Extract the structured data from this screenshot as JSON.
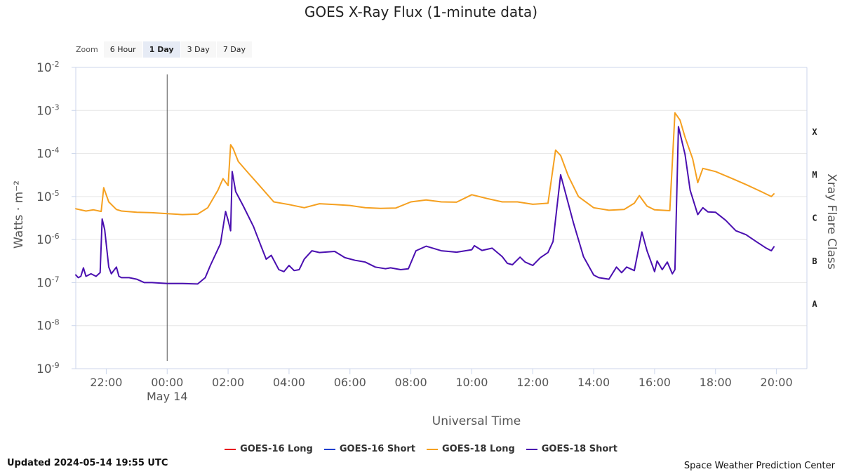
{
  "chart_data": {
    "type": "line",
    "title": "GOES X-Ray Flux (1-minute data)",
    "xlabel": "Universal Time",
    "ylabel": "Watts · m⁻²",
    "y2label": "Xray Flare Class",
    "yscale": "log",
    "ylim": [
      1e-09,
      0.01
    ],
    "ytick_exponents": [
      "-2",
      "-3",
      "-4",
      "-5",
      "-6",
      "-7",
      "-8",
      "-9"
    ],
    "xlim": [
      "2024-05-13T21:00",
      "2024-05-14T21:00"
    ],
    "xtick_labels": [
      "22:00",
      "00:00",
      "02:00",
      "04:00",
      "06:00",
      "08:00",
      "10:00",
      "12:00",
      "14:00",
      "16:00",
      "18:00",
      "20:00"
    ],
    "xtick_times": [
      "2024-05-13T22:00",
      "2024-05-14T00:00",
      "2024-05-14T02:00",
      "2024-05-14T04:00",
      "2024-05-14T06:00",
      "2024-05-14T08:00",
      "2024-05-14T10:00",
      "2024-05-14T12:00",
      "2024-05-14T14:00",
      "2024-05-14T16:00",
      "2024-05-14T18:00",
      "2024-05-14T20:00"
    ],
    "date_label": "May 14",
    "date_marker": "2024-05-14T00:00",
    "flare_classes": [
      {
        "label": "X",
        "value": 0.000316
      },
      {
        "label": "M",
        "value": 3.16e-05
      },
      {
        "label": "C",
        "value": 3.16e-06
      },
      {
        "label": "B",
        "value": 3.16e-07
      },
      {
        "label": "A",
        "value": 3.16e-08
      }
    ],
    "grid": true,
    "legend_position": "bottom",
    "series": [
      {
        "name": "GOES-16 Long",
        "color": "#e8191f",
        "x": [],
        "y": []
      },
      {
        "name": "GOES-16 Short",
        "color": "#1f3fcf",
        "x": [],
        "y": []
      },
      {
        "name": "GOES-18 Long",
        "color": "#f5a020",
        "x": [
          "2024-05-13T20:58",
          "2024-05-13T21:20",
          "2024-05-13T21:35",
          "2024-05-13T21:50",
          "2024-05-13T21:55",
          "2024-05-13T22:05",
          "2024-05-13T22:20",
          "2024-05-13T22:30",
          "2024-05-13T23:00",
          "2024-05-13T23:30",
          "2024-05-14T00:00",
          "2024-05-14T00:30",
          "2024-05-14T01:00",
          "2024-05-14T01:20",
          "2024-05-14T01:40",
          "2024-05-14T01:50",
          "2024-05-14T02:00",
          "2024-05-14T02:05",
          "2024-05-14T02:10",
          "2024-05-14T02:20",
          "2024-05-14T02:40",
          "2024-05-14T03:00",
          "2024-05-14T03:30",
          "2024-05-14T04:00",
          "2024-05-14T04:30",
          "2024-05-14T05:00",
          "2024-05-14T05:30",
          "2024-05-14T06:00",
          "2024-05-14T06:30",
          "2024-05-14T07:00",
          "2024-05-14T07:30",
          "2024-05-14T08:00",
          "2024-05-14T08:30",
          "2024-05-14T09:00",
          "2024-05-14T09:30",
          "2024-05-14T10:00",
          "2024-05-14T10:30",
          "2024-05-14T11:00",
          "2024-05-14T11:30",
          "2024-05-14T12:00",
          "2024-05-14T12:30",
          "2024-05-14T12:45",
          "2024-05-14T12:55",
          "2024-05-14T13:10",
          "2024-05-14T13:30",
          "2024-05-14T14:00",
          "2024-05-14T14:30",
          "2024-05-14T15:00",
          "2024-05-14T15:20",
          "2024-05-14T15:30",
          "2024-05-14T15:45",
          "2024-05-14T16:00",
          "2024-05-14T16:30",
          "2024-05-14T16:40",
          "2024-05-14T16:50",
          "2024-05-14T17:00",
          "2024-05-14T17:15",
          "2024-05-14T17:25",
          "2024-05-14T17:35",
          "2024-05-14T18:00",
          "2024-05-14T18:30",
          "2024-05-14T19:00",
          "2024-05-14T19:30",
          "2024-05-14T19:50",
          "2024-05-14T19:55"
        ],
        "y": [
          5.2e-06,
          4.6e-06,
          4.9e-06,
          4.5e-06,
          1.6e-05,
          7.5e-06,
          5e-06,
          4.6e-06,
          4.3e-06,
          4.2e-06,
          4e-06,
          3.8e-06,
          3.9e-06,
          5.5e-06,
          1.4e-05,
          2.6e-05,
          1.8e-05,
          0.00016,
          0.00013,
          6.5e-05,
          3.5e-05,
          1.9e-05,
          7.5e-06,
          6.5e-06,
          5.5e-06,
          6.8e-06,
          6.5e-06,
          6.2e-06,
          5.5e-06,
          5.3e-06,
          5.4e-06,
          7.5e-06,
          8.3e-06,
          7.5e-06,
          7.4e-06,
          1.1e-05,
          9e-06,
          7.5e-06,
          7.5e-06,
          6.6e-06,
          7e-06,
          0.00012,
          9e-05,
          3e-05,
          1e-05,
          5.5e-06,
          4.8e-06,
          5e-06,
          7e-06,
          1.05e-05,
          6e-06,
          4.9e-06,
          4.7e-06,
          0.00088,
          0.0006,
          0.00024,
          7.5e-05,
          2.1e-05,
          4.5e-05,
          3.8e-05,
          2.7e-05,
          1.9e-05,
          1.3e-05,
          1e-05,
          1.15e-05
        ]
      },
      {
        "name": "GOES-18 Short",
        "color": "#4a0fb0",
        "x": [
          "2024-05-13T20:58",
          "2024-05-13T21:05",
          "2024-05-13T21:10",
          "2024-05-13T21:15",
          "2024-05-13T21:20",
          "2024-05-13T21:30",
          "2024-05-13T21:40",
          "2024-05-13T21:48",
          "2024-05-13T21:52",
          "2024-05-13T21:57",
          "2024-05-13T22:05",
          "2024-05-13T22:10",
          "2024-05-13T22:20",
          "2024-05-13T22:25",
          "2024-05-13T22:30",
          "2024-05-13T22:45",
          "2024-05-13T23:00",
          "2024-05-13T23:15",
          "2024-05-13T23:30",
          "2024-05-14T00:00",
          "2024-05-14T00:30",
          "2024-05-14T01:00",
          "2024-05-14T01:15",
          "2024-05-14T01:25",
          "2024-05-14T01:45",
          "2024-05-14T01:55",
          "2024-05-14T02:00",
          "2024-05-14T02:05",
          "2024-05-14T02:08",
          "2024-05-14T02:15",
          "2024-05-14T02:30",
          "2024-05-14T02:50",
          "2024-05-14T03:05",
          "2024-05-14T03:15",
          "2024-05-14T03:25",
          "2024-05-14T03:40",
          "2024-05-14T03:50",
          "2024-05-14T04:00",
          "2024-05-14T04:10",
          "2024-05-14T04:20",
          "2024-05-14T04:30",
          "2024-05-14T04:45",
          "2024-05-14T05:00",
          "2024-05-14T05:30",
          "2024-05-14T05:50",
          "2024-05-14T06:10",
          "2024-05-14T06:30",
          "2024-05-14T06:50",
          "2024-05-14T07:10",
          "2024-05-14T07:20",
          "2024-05-14T07:40",
          "2024-05-14T07:55",
          "2024-05-14T08:10",
          "2024-05-14T08:30",
          "2024-05-14T09:00",
          "2024-05-14T09:30",
          "2024-05-14T10:00",
          "2024-05-14T10:05",
          "2024-05-14T10:20",
          "2024-05-14T10:40",
          "2024-05-14T11:00",
          "2024-05-14T11:10",
          "2024-05-14T11:20",
          "2024-05-14T11:35",
          "2024-05-14T11:45",
          "2024-05-14T12:00",
          "2024-05-14T12:15",
          "2024-05-14T12:30",
          "2024-05-14T12:40",
          "2024-05-14T12:55",
          "2024-05-14T13:20",
          "2024-05-14T13:40",
          "2024-05-14T14:00",
          "2024-05-14T14:10",
          "2024-05-14T14:30",
          "2024-05-14T14:45",
          "2024-05-14T14:55",
          "2024-05-14T15:05",
          "2024-05-14T15:20",
          "2024-05-14T15:35",
          "2024-05-14T15:45",
          "2024-05-14T16:00",
          "2024-05-14T16:05",
          "2024-05-14T16:15",
          "2024-05-14T16:25",
          "2024-05-14T16:35",
          "2024-05-14T16:40",
          "2024-05-14T16:47",
          "2024-05-14T17:00",
          "2024-05-14T17:10",
          "2024-05-14T17:25",
          "2024-05-14T17:35",
          "2024-05-14T17:45",
          "2024-05-14T18:00",
          "2024-05-14T18:20",
          "2024-05-14T18:40",
          "2024-05-14T19:00",
          "2024-05-14T19:20",
          "2024-05-14T19:40",
          "2024-05-14T19:50",
          "2024-05-14T19:55"
        ],
        "y": [
          1.5e-07,
          1.3e-07,
          1.4e-07,
          2.2e-07,
          1.4e-07,
          1.6e-07,
          1.4e-07,
          1.7e-07,
          3e-06,
          1.7e-06,
          2.3e-07,
          1.6e-07,
          2.3e-07,
          1.4e-07,
          1.3e-07,
          1.3e-07,
          1.2e-07,
          1e-07,
          1e-07,
          9.5e-08,
          9.5e-08,
          9.3e-08,
          1.3e-07,
          2.5e-07,
          8e-07,
          4.5e-06,
          2.8e-06,
          1.6e-06,
          3.8e-05,
          1.3e-05,
          6e-06,
          2e-06,
          7e-07,
          3.5e-07,
          4.3e-07,
          2e-07,
          1.8e-07,
          2.5e-07,
          1.9e-07,
          2e-07,
          3.5e-07,
          5.5e-07,
          5e-07,
          5.3e-07,
          3.8e-07,
          3.3e-07,
          3e-07,
          2.3e-07,
          2.1e-07,
          2.2e-07,
          2e-07,
          2.1e-07,
          5.5e-07,
          7e-07,
          5.5e-07,
          5.1e-07,
          5.8e-07,
          7.2e-07,
          5.6e-07,
          6.3e-07,
          4e-07,
          2.8e-07,
          2.6e-07,
          3.9e-07,
          3e-07,
          2.5e-07,
          3.8e-07,
          5e-07,
          9e-07,
          3.2e-05,
          2.5e-06,
          4e-07,
          1.5e-07,
          1.3e-07,
          1.2e-07,
          2.3e-07,
          1.7e-07,
          2.3e-07,
          1.9e-07,
          1.5e-06,
          5.5e-07,
          1.8e-07,
          3.2e-07,
          2e-07,
          3e-07,
          1.6e-07,
          2e-07,
          0.00042,
          9.5e-05,
          1.4e-05,
          3.8e-06,
          5.5e-06,
          4.4e-06,
          4.3e-06,
          2.8e-06,
          1.6e-06,
          1.3e-06,
          9e-07,
          6.3e-07,
          5.5e-07,
          6.8e-07
        ]
      }
    ]
  },
  "zoom": {
    "label": "Zoom",
    "buttons": [
      "6 Hour",
      "1 Day",
      "3 Day",
      "7 Day"
    ],
    "active": "1 Day"
  },
  "legend_items": [
    {
      "label": "GOES-16 Long",
      "color": "#e8191f"
    },
    {
      "label": "GOES-16 Short",
      "color": "#1f3fcf"
    },
    {
      "label": "GOES-18 Long",
      "color": "#f5a020"
    },
    {
      "label": "GOES-18 Short",
      "color": "#4a0fb0"
    }
  ],
  "footer": {
    "updated": "Updated 2024-05-14 19:55 UTC",
    "credit": "Space Weather Prediction Center"
  }
}
